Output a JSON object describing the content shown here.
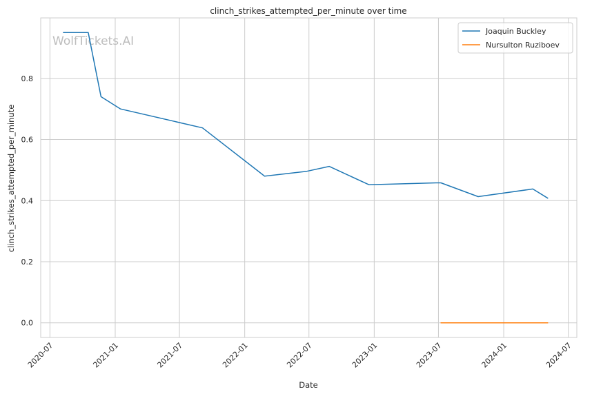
{
  "chart_data": {
    "type": "line",
    "title": "clinch_strikes_attempted_per_minute over time",
    "xlabel": "Date",
    "ylabel": "clinch_strikes_attempted_per_minute",
    "watermark": "WolfTickets.AI",
    "x_ticks": [
      "2020-07",
      "2021-01",
      "2021-07",
      "2022-01",
      "2022-07",
      "2023-01",
      "2023-07",
      "2024-01",
      "2024-07"
    ],
    "y_ticks": [
      "0.0",
      "0.2",
      "0.4",
      "0.6",
      "0.8"
    ],
    "xlim": [
      "2020-06-05",
      "2024-07-25"
    ],
    "ylim": [
      -0.048,
      0.998
    ],
    "grid": true,
    "legend_position": "top-right",
    "series": [
      {
        "name": "Joaquin Buckley",
        "color": "#1f77b4",
        "points": [
          {
            "x": "2020-08-08",
            "y": 0.95
          },
          {
            "x": "2020-10-17",
            "y": 0.95
          },
          {
            "x": "2020-11-22",
            "y": 0.74
          },
          {
            "x": "2021-01-16",
            "y": 0.7
          },
          {
            "x": "2021-09-04",
            "y": 0.638
          },
          {
            "x": "2022-02-26",
            "y": 0.48
          },
          {
            "x": "2022-06-25",
            "y": 0.496
          },
          {
            "x": "2022-08-27",
            "y": 0.512
          },
          {
            "x": "2022-12-17",
            "y": 0.452
          },
          {
            "x": "2023-06-24",
            "y": 0.458
          },
          {
            "x": "2023-07-08",
            "y": 0.458
          },
          {
            "x": "2023-10-21",
            "y": 0.413
          },
          {
            "x": "2024-03-23",
            "y": 0.438
          },
          {
            "x": "2024-05-04",
            "y": 0.408
          }
        ]
      },
      {
        "name": "Nursulton Ruziboev",
        "color": "#ff7f0e",
        "points": [
          {
            "x": "2023-07-08",
            "y": 0.0
          },
          {
            "x": "2024-05-04",
            "y": 0.0
          }
        ]
      }
    ]
  }
}
